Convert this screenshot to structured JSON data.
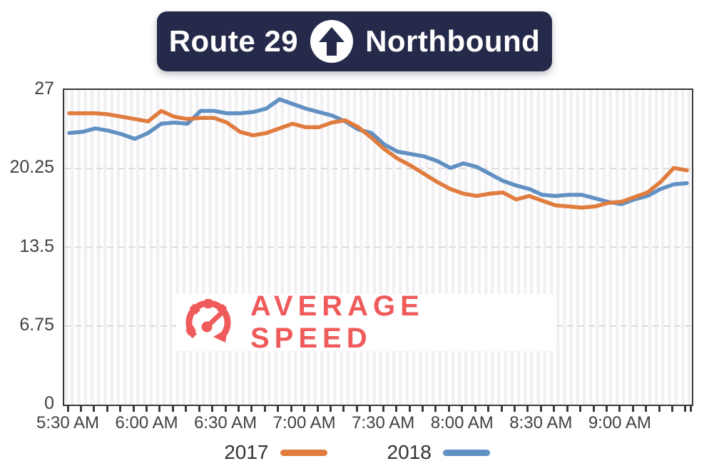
{
  "header": {
    "route": "Route 29",
    "direction": "Northbound",
    "bg_color": "#262a4a",
    "arrow_icon": "up-arrow-in-circle"
  },
  "watermark": {
    "label": "AVERAGE SPEED",
    "icon": "speedometer",
    "color": "#ef5b5b"
  },
  "legend": [
    {
      "label": "2017",
      "color": "#e07c3e"
    },
    {
      "label": "2018",
      "color": "#6190c2"
    }
  ],
  "chart_data": {
    "type": "line",
    "title": "Route 29 Northbound — Average Speed",
    "ylabel": "Average speed",
    "ylim": [
      0,
      27
    ],
    "y_ticks": [
      27,
      20.25,
      13.5,
      6.75,
      0
    ],
    "grid": "horizontal-dashed",
    "legend_position": "bottom",
    "x_tick_labels": [
      "5:30 AM",
      "6:00 AM",
      "6:30 AM",
      "7:00 AM",
      "7:30 AM",
      "8:00 AM",
      "8:30 AM",
      "9:00 AM"
    ],
    "x": [
      "5:30 AM",
      "5:35 AM",
      "5:40 AM",
      "5:45 AM",
      "5:50 AM",
      "5:55 AM",
      "6:00 AM",
      "6:05 AM",
      "6:10 AM",
      "6:15 AM",
      "6:20 AM",
      "6:25 AM",
      "6:30 AM",
      "6:35 AM",
      "6:40 AM",
      "6:45 AM",
      "6:50 AM",
      "6:55 AM",
      "7:00 AM",
      "7:05 AM",
      "7:10 AM",
      "7:15 AM",
      "7:20 AM",
      "7:25 AM",
      "7:30 AM",
      "7:35 AM",
      "7:40 AM",
      "7:45 AM",
      "7:50 AM",
      "7:55 AM",
      "8:00 AM",
      "8:05 AM",
      "8:10 AM",
      "8:15 AM",
      "8:20 AM",
      "8:25 AM",
      "8:30 AM",
      "8:35 AM",
      "8:40 AM",
      "8:45 AM",
      "8:50 AM",
      "8:55 AM",
      "9:00 AM",
      "9:05 AM",
      "9:10 AM",
      "9:15 AM",
      "9:20 AM",
      "9:25 AM"
    ],
    "series": [
      {
        "name": "2017",
        "color": "#e07c3e",
        "values": [
          25.0,
          25.0,
          25.0,
          24.9,
          24.7,
          24.5,
          24.3,
          25.2,
          24.7,
          24.5,
          24.6,
          24.6,
          24.2,
          23.4,
          23.1,
          23.3,
          23.7,
          24.1,
          23.8,
          23.8,
          24.2,
          24.4,
          23.8,
          22.9,
          21.9,
          21.1,
          20.5,
          19.8,
          19.1,
          18.5,
          18.1,
          17.9,
          18.1,
          18.2,
          17.6,
          17.9,
          17.5,
          17.1,
          17.0,
          16.9,
          17.0,
          17.3,
          17.4,
          17.8,
          18.2,
          19.1,
          20.3,
          20.1
        ]
      },
      {
        "name": "2018",
        "color": "#6190c2",
        "values": [
          23.3,
          23.4,
          23.7,
          23.5,
          23.2,
          22.8,
          23.3,
          24.1,
          24.2,
          24.1,
          25.2,
          25.2,
          25.0,
          25.0,
          25.1,
          25.4,
          26.2,
          25.8,
          25.4,
          25.1,
          24.8,
          24.3,
          23.6,
          23.3,
          22.3,
          21.7,
          21.5,
          21.3,
          20.9,
          20.3,
          20.7,
          20.4,
          19.8,
          19.2,
          18.8,
          18.5,
          18.0,
          17.9,
          18.0,
          18.0,
          17.7,
          17.4,
          17.2,
          17.6,
          17.9,
          18.5,
          18.9,
          19.0
        ]
      }
    ]
  }
}
